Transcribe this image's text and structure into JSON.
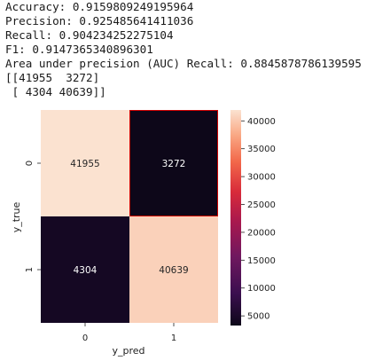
{
  "console": {
    "lines": [
      "Accuracy: 0.9159809249195964",
      "Precision: 0.925485641411036",
      "Recall: 0.904234252275104",
      "F1: 0.9147365340896301",
      "Area under precision (AUC) Recall: 0.8845878786139595",
      "[[41955  3272]",
      " [ 4304 40639]]"
    ]
  },
  "chart_data": {
    "type": "heatmap",
    "title": "",
    "xlabel": "y_pred",
    "ylabel": "y_true",
    "x_categories": [
      "0",
      "1"
    ],
    "y_categories": [
      "0",
      "1"
    ],
    "values": [
      [
        41955,
        3272
      ],
      [
        4304,
        40639
      ]
    ],
    "colorbar": {
      "ticks": [
        5000,
        10000,
        15000,
        20000,
        25000,
        30000,
        35000,
        40000
      ],
      "range": [
        3272,
        41955
      ]
    },
    "colors": {
      "low": "#0d0719",
      "high": "#fbe2d0",
      "selected_cell_border": "#cc0000"
    }
  }
}
